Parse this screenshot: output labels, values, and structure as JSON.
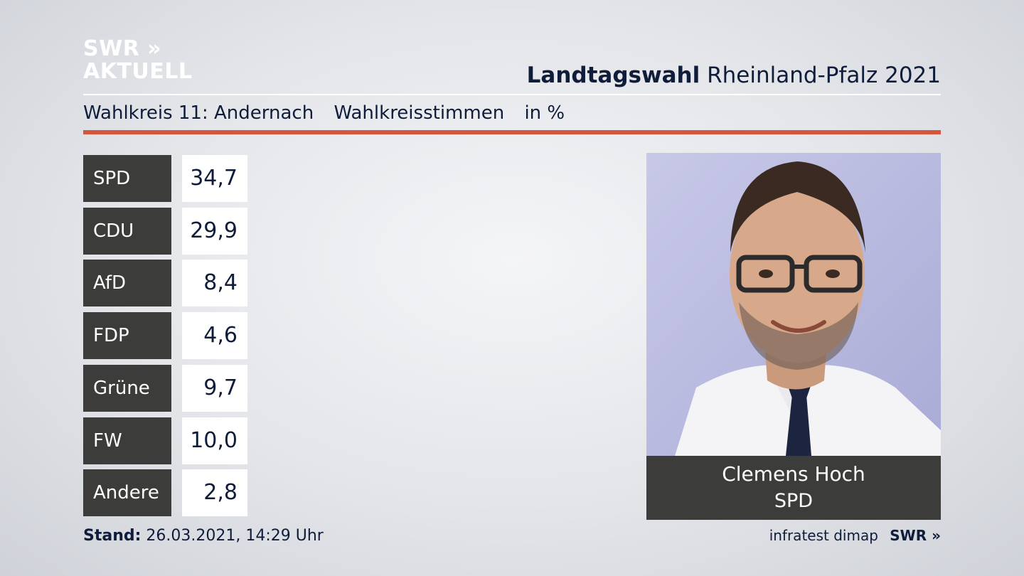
{
  "logo": {
    "line1": "SWR »",
    "line2": "AKTUELL"
  },
  "header": {
    "title_bold": "Landtagswahl",
    "title_rest": "Rheinland-Pfalz 2021"
  },
  "subheader": {
    "district": "Wahlkreis 11: Andernach",
    "vote_type": "Wahlkreisstimmen",
    "unit": "in %"
  },
  "chart_data": {
    "type": "table",
    "categories": [
      "SPD",
      "CDU",
      "AfD",
      "FDP",
      "Grüne",
      "FW",
      "Andere"
    ],
    "values": [
      34.7,
      29.9,
      8.4,
      4.6,
      9.7,
      10.0,
      2.8
    ],
    "value_labels": [
      "34,7",
      "29,9",
      "8,4",
      "4,6",
      "9,7",
      "10,0",
      "2,8"
    ]
  },
  "candidate": {
    "name": "Clemens Hoch",
    "party": "SPD"
  },
  "footer": {
    "stand_label": "Stand:",
    "stand_value": "26.03.2021, 14:29 Uhr",
    "source": "infratest dimap",
    "brand": "SWR »"
  },
  "colors": {
    "accent_red": "#d4563d",
    "party_box": "#3c3c3a",
    "text_navy": "#0f1d3a"
  }
}
